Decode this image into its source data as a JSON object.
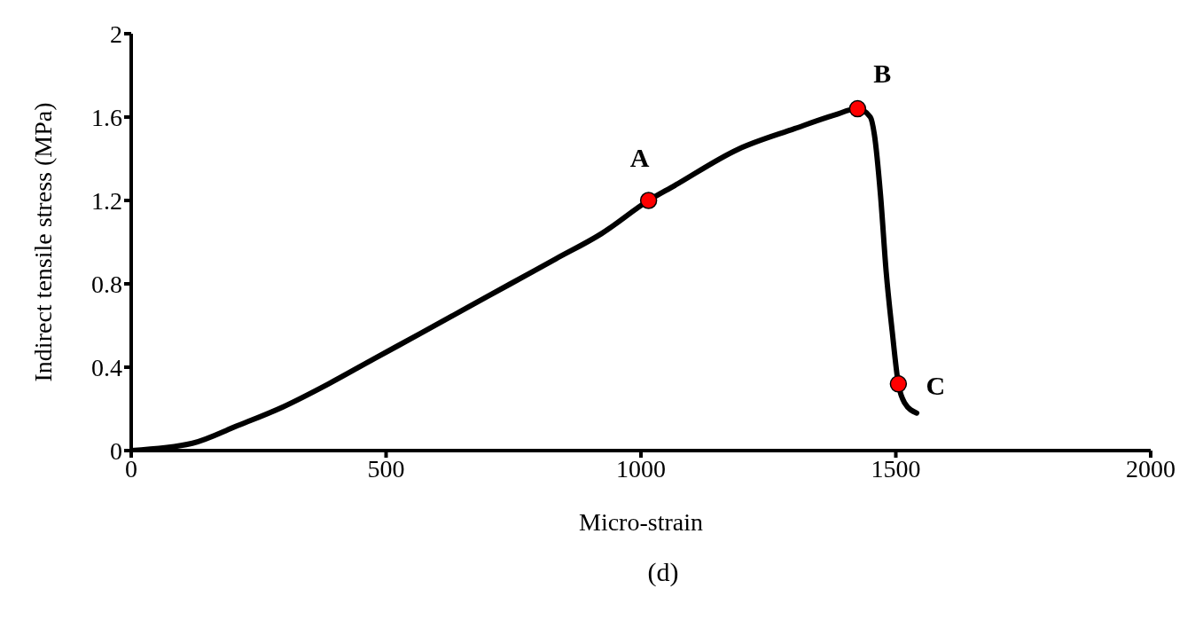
{
  "chart_data": {
    "type": "line",
    "xlabel": "Micro-strain",
    "ylabel": "Indirect tensile  stress  (MPa)",
    "xlim": [
      0,
      2000
    ],
    "xticks": [
      0,
      500,
      1000,
      1500,
      2000
    ],
    "ylim": [
      0,
      2
    ],
    "yticks": [
      0,
      0.4,
      0.8,
      1.2,
      1.6,
      2
    ],
    "grid": false,
    "marker": "none",
    "line_style": "solid",
    "series": [
      {
        "color": "#000000",
        "x": [
          0,
          120,
          209,
          298,
          387,
          476,
          566,
          655,
          744,
          833,
          922,
          1015,
          1065,
          1190,
          1302,
          1380,
          1425,
          1450,
          1458,
          1470,
          1481,
          1493,
          1505,
          1517,
          1541
        ],
        "values": [
          0,
          0.035,
          0.12,
          0.21,
          0.32,
          0.44,
          0.56,
          0.68,
          0.8,
          0.92,
          1.04,
          1.2,
          1.27,
          1.445,
          1.545,
          1.61,
          1.64,
          1.6,
          1.515,
          1.225,
          0.86,
          0.57,
          0.32,
          0.23,
          0.18
        ]
      },
      {
        "type": "scatter",
        "color": "#ff0000",
        "marker": "circle",
        "x": [
          1015,
          1425,
          1505
        ],
        "values": [
          1.2,
          1.64,
          0.32
        ]
      }
    ],
    "annotations": [
      {
        "text": "A",
        "x": 1015,
        "y": 1.2
      },
      {
        "text": "B",
        "x": 1425,
        "y": 1.64
      },
      {
        "text": "C",
        "x": 1505,
        "y": 0.32
      },
      "(d)"
    ]
  }
}
